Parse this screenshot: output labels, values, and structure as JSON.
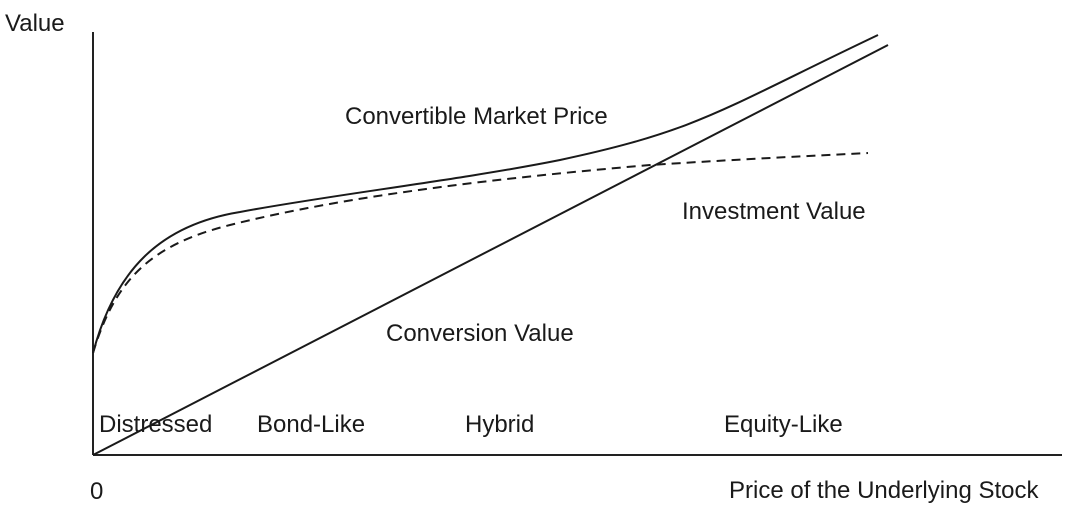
{
  "diagram": {
    "y_axis_label": "Value",
    "x_axis_label": "Price of the Underlying Stock",
    "origin_label": "0",
    "curves": {
      "convertible_market_price": "Convertible Market Price",
      "investment_value": "Investment Value",
      "conversion_value": "Conversion Value"
    },
    "zones": [
      "Distressed",
      "Bond-Like",
      "Hybrid",
      "Equity-Like"
    ]
  }
}
